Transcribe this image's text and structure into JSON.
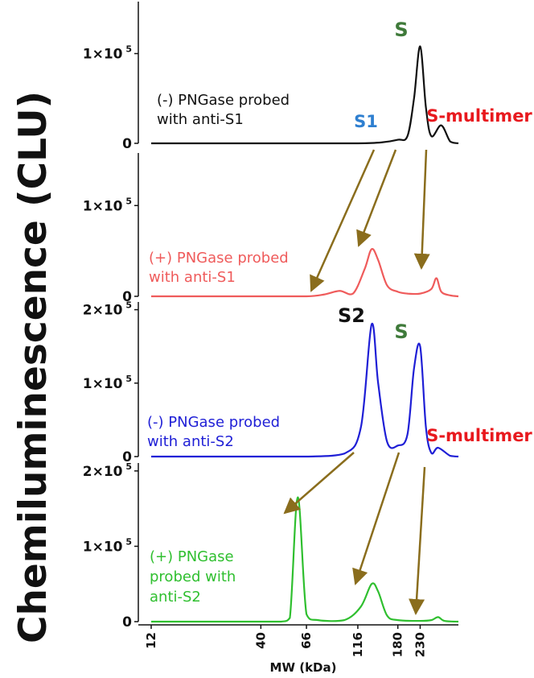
{
  "colors": {
    "black": "#111111",
    "red": "#ef5b5b",
    "blue": "#1f1fd6",
    "green": "#2fbf2f",
    "label_blue": "#2e7fd0",
    "label_red": "#e8191e",
    "label_green": "#3f7a3a",
    "label_darkgreen": "#2fa72f",
    "arrow": "#8a6d1d"
  },
  "chart_data": {
    "type": "line",
    "ylabel": "Chemiluminescence (CLU)",
    "xlabel": "MW (kDa)",
    "x_ticks": [
      "12",
      "40",
      "66",
      "116",
      "180",
      "230"
    ],
    "panels": [
      {
        "name": "(-) PNGase probed with anti-S1",
        "label_lines": [
          "(-) PNGase probed",
          "with anti-S1"
        ],
        "color": "#111111",
        "y_ticks": [
          {
            "value": 0,
            "label": "0"
          },
          {
            "value": 100000,
            "label": "1×10",
            "exp": "5"
          }
        ],
        "ylim": [
          0,
          150000
        ],
        "series": {
          "x": [
            12,
            40,
            66,
            116,
            150,
            180,
            200,
            215,
            230,
            245,
            260,
            290,
            320,
            350
          ],
          "y": [
            0,
            0,
            0,
            0,
            1000,
            4000,
            8000,
            50000,
            108000,
            40000,
            8000,
            20000,
            2000,
            0
          ]
        },
        "peak_labels": [
          {
            "text": "S1",
            "color": "#2e7fd0"
          },
          {
            "text": "S",
            "color": "#3f7a3a"
          },
          {
            "text": "S-multimer",
            "color": "#e8191e"
          }
        ]
      },
      {
        "name": "(+) PNGase probed with anti-S1",
        "label_lines": [
          "(+) PNGase probed",
          "with anti-S1"
        ],
        "color": "#ef5b5b",
        "y_ticks": [
          {
            "value": 0,
            "label": "0"
          },
          {
            "value": 100000,
            "label": "1×10",
            "exp": "5"
          }
        ],
        "ylim": [
          0,
          150000
        ],
        "series": {
          "x": [
            12,
            40,
            66,
            80,
            95,
            110,
            125,
            135,
            145,
            160,
            180,
            200,
            230,
            260,
            275,
            290,
            320,
            350
          ],
          "y": [
            0,
            0,
            0,
            2000,
            6000,
            3000,
            30000,
            52000,
            40000,
            12000,
            5000,
            3000,
            3000,
            8000,
            20000,
            5000,
            1000,
            0
          ]
        },
        "peak_labels": []
      },
      {
        "name": "(-) PNGase probed with anti-S2",
        "label_lines": [
          "(-) PNGase probed",
          "with anti-S2"
        ],
        "color": "#1f1fd6",
        "y_ticks": [
          {
            "value": 0,
            "label": "0"
          },
          {
            "value": 100000,
            "label": "1×10",
            "exp": "5"
          },
          {
            "value": 200000,
            "label": "2×10",
            "exp": "5"
          }
        ],
        "ylim": [
          0,
          200000
        ],
        "series": {
          "x": [
            12,
            40,
            66,
            100,
            120,
            135,
            145,
            160,
            180,
            200,
            215,
            230,
            245,
            260,
            280,
            320,
            350
          ],
          "y": [
            0,
            0,
            0,
            4000,
            40000,
            180000,
            100000,
            20000,
            15000,
            30000,
            120000,
            150000,
            40000,
            5000,
            12000,
            1000,
            0
          ]
        },
        "peak_labels": [
          {
            "text": "S2",
            "color": "#111111"
          },
          {
            "text": "S",
            "color": "#3f7a3a"
          },
          {
            "text": "S-multimer",
            "color": "#e8191e"
          }
        ]
      },
      {
        "name": "(+) PNGase probed with anti-S2",
        "label_lines": [
          "(+) PNGase",
          "probed with",
          "anti-S2"
        ],
        "color": "#2fbf2f",
        "y_ticks": [
          {
            "value": 0,
            "label": "0"
          },
          {
            "value": 100000,
            "label": "1×10",
            "exp": "5"
          },
          {
            "value": 200000,
            "label": "2×10",
            "exp": "5"
          }
        ],
        "ylim": [
          0,
          200000
        ],
        "series": {
          "x": [
            12,
            40,
            50,
            55,
            60,
            66,
            75,
            100,
            120,
            135,
            145,
            160,
            180,
            230,
            260,
            280,
            300,
            350
          ],
          "y": [
            0,
            0,
            0,
            5000,
            165000,
            10000,
            2000,
            2000,
            20000,
            50000,
            40000,
            8000,
            2000,
            1000,
            2000,
            6000,
            1000,
            0
          ]
        },
        "peak_labels": []
      }
    ]
  }
}
